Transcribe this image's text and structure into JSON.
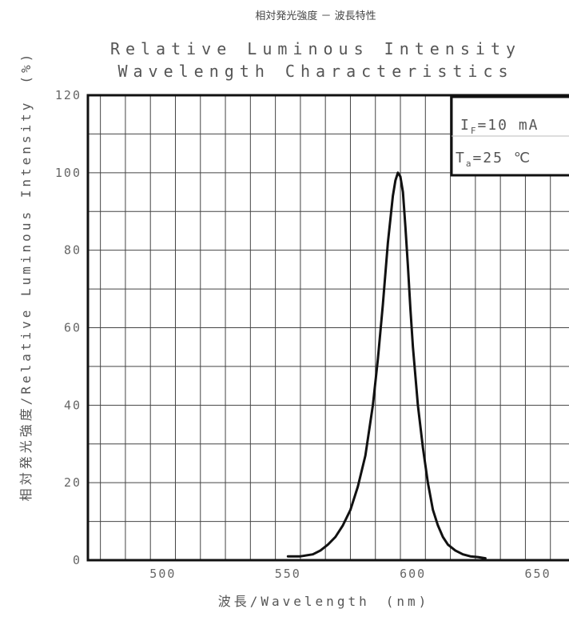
{
  "chart_data": {
    "type": "line",
    "title_jp": "相対発光強度 － 波長特性",
    "title_en_line1": "Relative Luminous Intensity",
    "title_en_line2": "Wavelength Characteristics",
    "xlabel": "波長/Wavelength　(nm)",
    "ylabel": "相対発光強度/Relative Luminous Intensity　(%)",
    "xlim": [
      470,
      665
    ],
    "ylim": [
      0,
      120
    ],
    "x_ticks": [
      500,
      550,
      600,
      650
    ],
    "y_ticks": [
      0,
      20,
      40,
      60,
      80,
      100,
      120
    ],
    "grid": true,
    "conditions": {
      "if_main": "I",
      "if_sub": "F",
      "if_value": "=10 mA",
      "ta_main": "T",
      "ta_sub": "a",
      "ta_value": "=25 ℃"
    },
    "series": [
      {
        "x": [
          550,
          555,
          560,
          563,
          566,
          569,
          572,
          575,
          578,
          581,
          584,
          586,
          588,
          590,
          592,
          593,
          594,
          595,
          596,
          597,
          598,
          599,
          600,
          602,
          604,
          606,
          608,
          610,
          612,
          614,
          617,
          620,
          623,
          626,
          629
        ],
        "y": [
          1,
          1,
          1.5,
          2.5,
          4,
          6,
          9,
          13,
          19,
          27,
          40,
          52,
          66,
          82,
          94,
          98,
          100,
          99,
          95,
          86,
          76,
          65,
          55,
          40,
          29,
          20,
          13,
          9,
          6,
          4,
          2.5,
          1.5,
          1,
          0.8,
          0.5
        ]
      }
    ]
  }
}
